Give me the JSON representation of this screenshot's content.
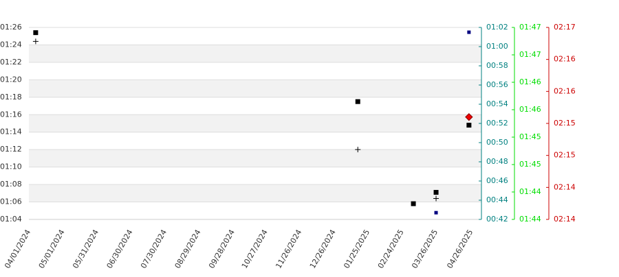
{
  "chart_data": {
    "type": "scatter",
    "xticks": [
      "04/01/2024",
      "05/01/2024",
      "05/31/2024",
      "06/30/2024",
      "07/30/2024",
      "08/29/2024",
      "09/28/2024",
      "10/27/2024",
      "11/26/2024",
      "12/26/2024",
      "01/25/2025",
      "02/24/2025",
      "03/26/2025",
      "04/26/2025"
    ],
    "xlim": [
      "04/01/2024",
      "05/05/2025"
    ],
    "ylim": [
      64,
      86
    ],
    "yticks": [
      {
        "value": 86,
        "label": "01:26"
      },
      {
        "value": 84,
        "label": "01:24"
      },
      {
        "value": 82,
        "label": "01:22"
      },
      {
        "value": 80,
        "label": "01:20"
      },
      {
        "value": 78,
        "label": "01:18"
      },
      {
        "value": 76,
        "label": "01:16"
      },
      {
        "value": 74,
        "label": "01:14"
      },
      {
        "value": 72,
        "label": "01:12"
      },
      {
        "value": 70,
        "label": "01:10"
      },
      {
        "value": 68,
        "label": "01:08"
      },
      {
        "value": 66,
        "label": "01:06"
      },
      {
        "value": 64,
        "label": "01:04"
      }
    ],
    "y2lim": [
      42,
      62
    ],
    "y2color": "#008080",
    "y2ticks": [
      {
        "value": 62,
        "label": "01:02"
      },
      {
        "value": 60,
        "label": "01:00"
      },
      {
        "value": 58,
        "label": "00:58"
      },
      {
        "value": 56,
        "label": "00:56"
      },
      {
        "value": 54,
        "label": "00:54"
      },
      {
        "value": 52,
        "label": "00:52"
      },
      {
        "value": 50,
        "label": "00:50"
      },
      {
        "value": 48,
        "label": "00:48"
      },
      {
        "value": 46,
        "label": "00:46"
      },
      {
        "value": 44,
        "label": "00:44"
      },
      {
        "value": 42,
        "label": "00:42"
      }
    ],
    "y3lim": [
      104,
      107.5
    ],
    "y3color": "#00dd00",
    "y3ticks": [
      {
        "value": 107.5,
        "label": "01:47"
      },
      {
        "value": 107,
        "label": "01:47"
      },
      {
        "value": 106.5,
        "label": "01:46"
      },
      {
        "value": 106,
        "label": "01:46"
      },
      {
        "value": 105.5,
        "label": "01:45"
      },
      {
        "value": 105,
        "label": "01:45"
      },
      {
        "value": 104.5,
        "label": "01:44"
      },
      {
        "value": 104,
        "label": "01:44"
      }
    ],
    "y4lim": [
      134,
      137
    ],
    "y4color": "#cc0000",
    "y4ticks": [
      {
        "value": 137,
        "label": "02:17"
      },
      {
        "value": 136.5,
        "label": "02:16"
      },
      {
        "value": 136,
        "label": "02:16"
      },
      {
        "value": 135.5,
        "label": "02:15"
      },
      {
        "value": 135,
        "label": "02:15"
      },
      {
        "value": 134.5,
        "label": "02:14"
      },
      {
        "value": 134,
        "label": "02:14"
      }
    ],
    "series": [
      {
        "color": "#000000",
        "marker": "square",
        "axis": "y",
        "x": [
          "04/07/2024",
          "01/16/2025",
          "03/06/2025",
          "03/26/2025",
          "04/24/2025"
        ],
        "values": [
          85.4,
          77.5,
          65.8,
          67.1,
          74.8
        ]
      },
      {
        "color": "#000000",
        "marker": "cross",
        "axis": "y",
        "x": [
          "04/07/2024",
          "01/16/2025",
          "03/26/2025"
        ],
        "values": [
          84.4,
          72.0,
          66.4
        ]
      },
      {
        "color": "#000080",
        "marker": "small-square",
        "axis": "y2",
        "x": [
          "04/24/2025",
          "03/26/2025"
        ],
        "values": [
          61.5,
          42.7
        ]
      },
      {
        "color": "#ee0000",
        "marker": "diamond",
        "axis": "y4",
        "x": [
          "04/24/2025"
        ],
        "values": [
          135.6
        ]
      }
    ]
  }
}
